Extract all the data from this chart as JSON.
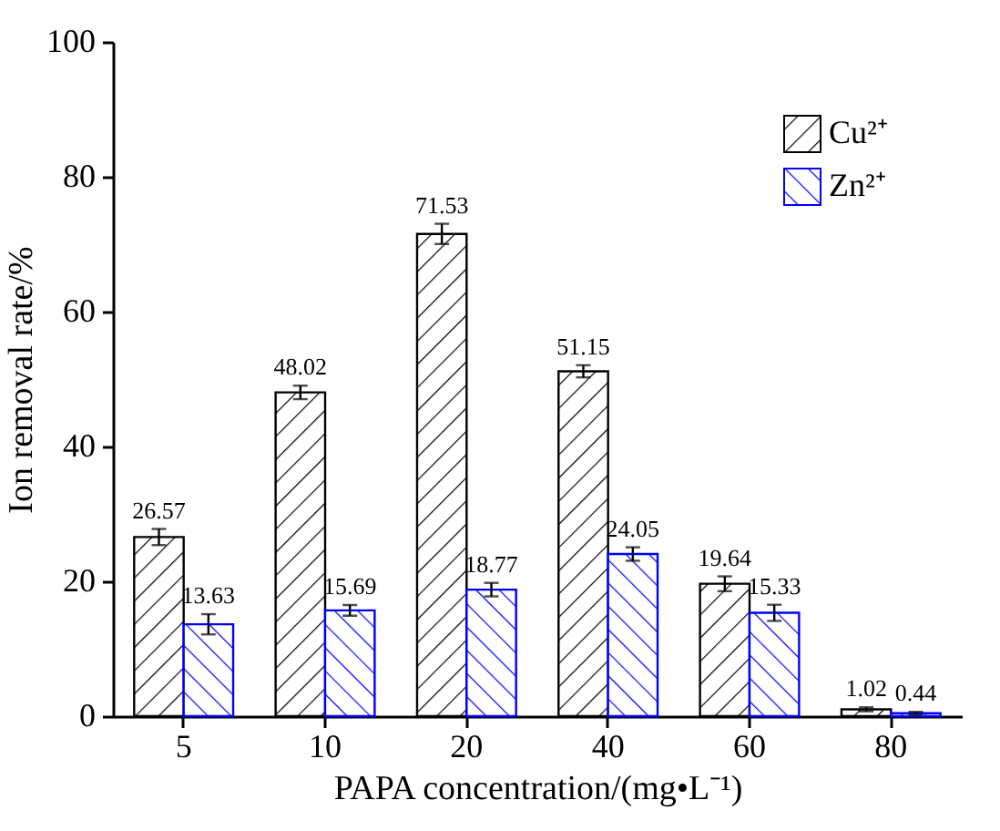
{
  "chart_data": {
    "type": "bar",
    "xlabel": "PAPA concentration/(mg•L⁻¹)",
    "ylabel": "Ion removal rate/%",
    "categories": [
      "5",
      "10",
      "20",
      "40",
      "60",
      "80"
    ],
    "series": [
      {
        "name": "Cu²⁺",
        "color": "#000000",
        "values": [
          26.57,
          48.02,
          71.53,
          51.15,
          19.64,
          1.02
        ],
        "errors": [
          1.2,
          1.0,
          1.5,
          0.9,
          1.1,
          0.3
        ]
      },
      {
        "name": "Zn²⁺",
        "color": "#0000ff",
        "values": [
          13.63,
          15.69,
          18.77,
          24.05,
          15.33,
          0.44
        ],
        "errors": [
          1.5,
          0.8,
          1.0,
          1.0,
          1.2,
          0.2
        ]
      }
    ],
    "ylim": [
      0,
      100
    ],
    "yticks": [
      0,
      20,
      40,
      60,
      80,
      100
    ],
    "data_labels": true,
    "legend": "top right",
    "grid": false
  }
}
